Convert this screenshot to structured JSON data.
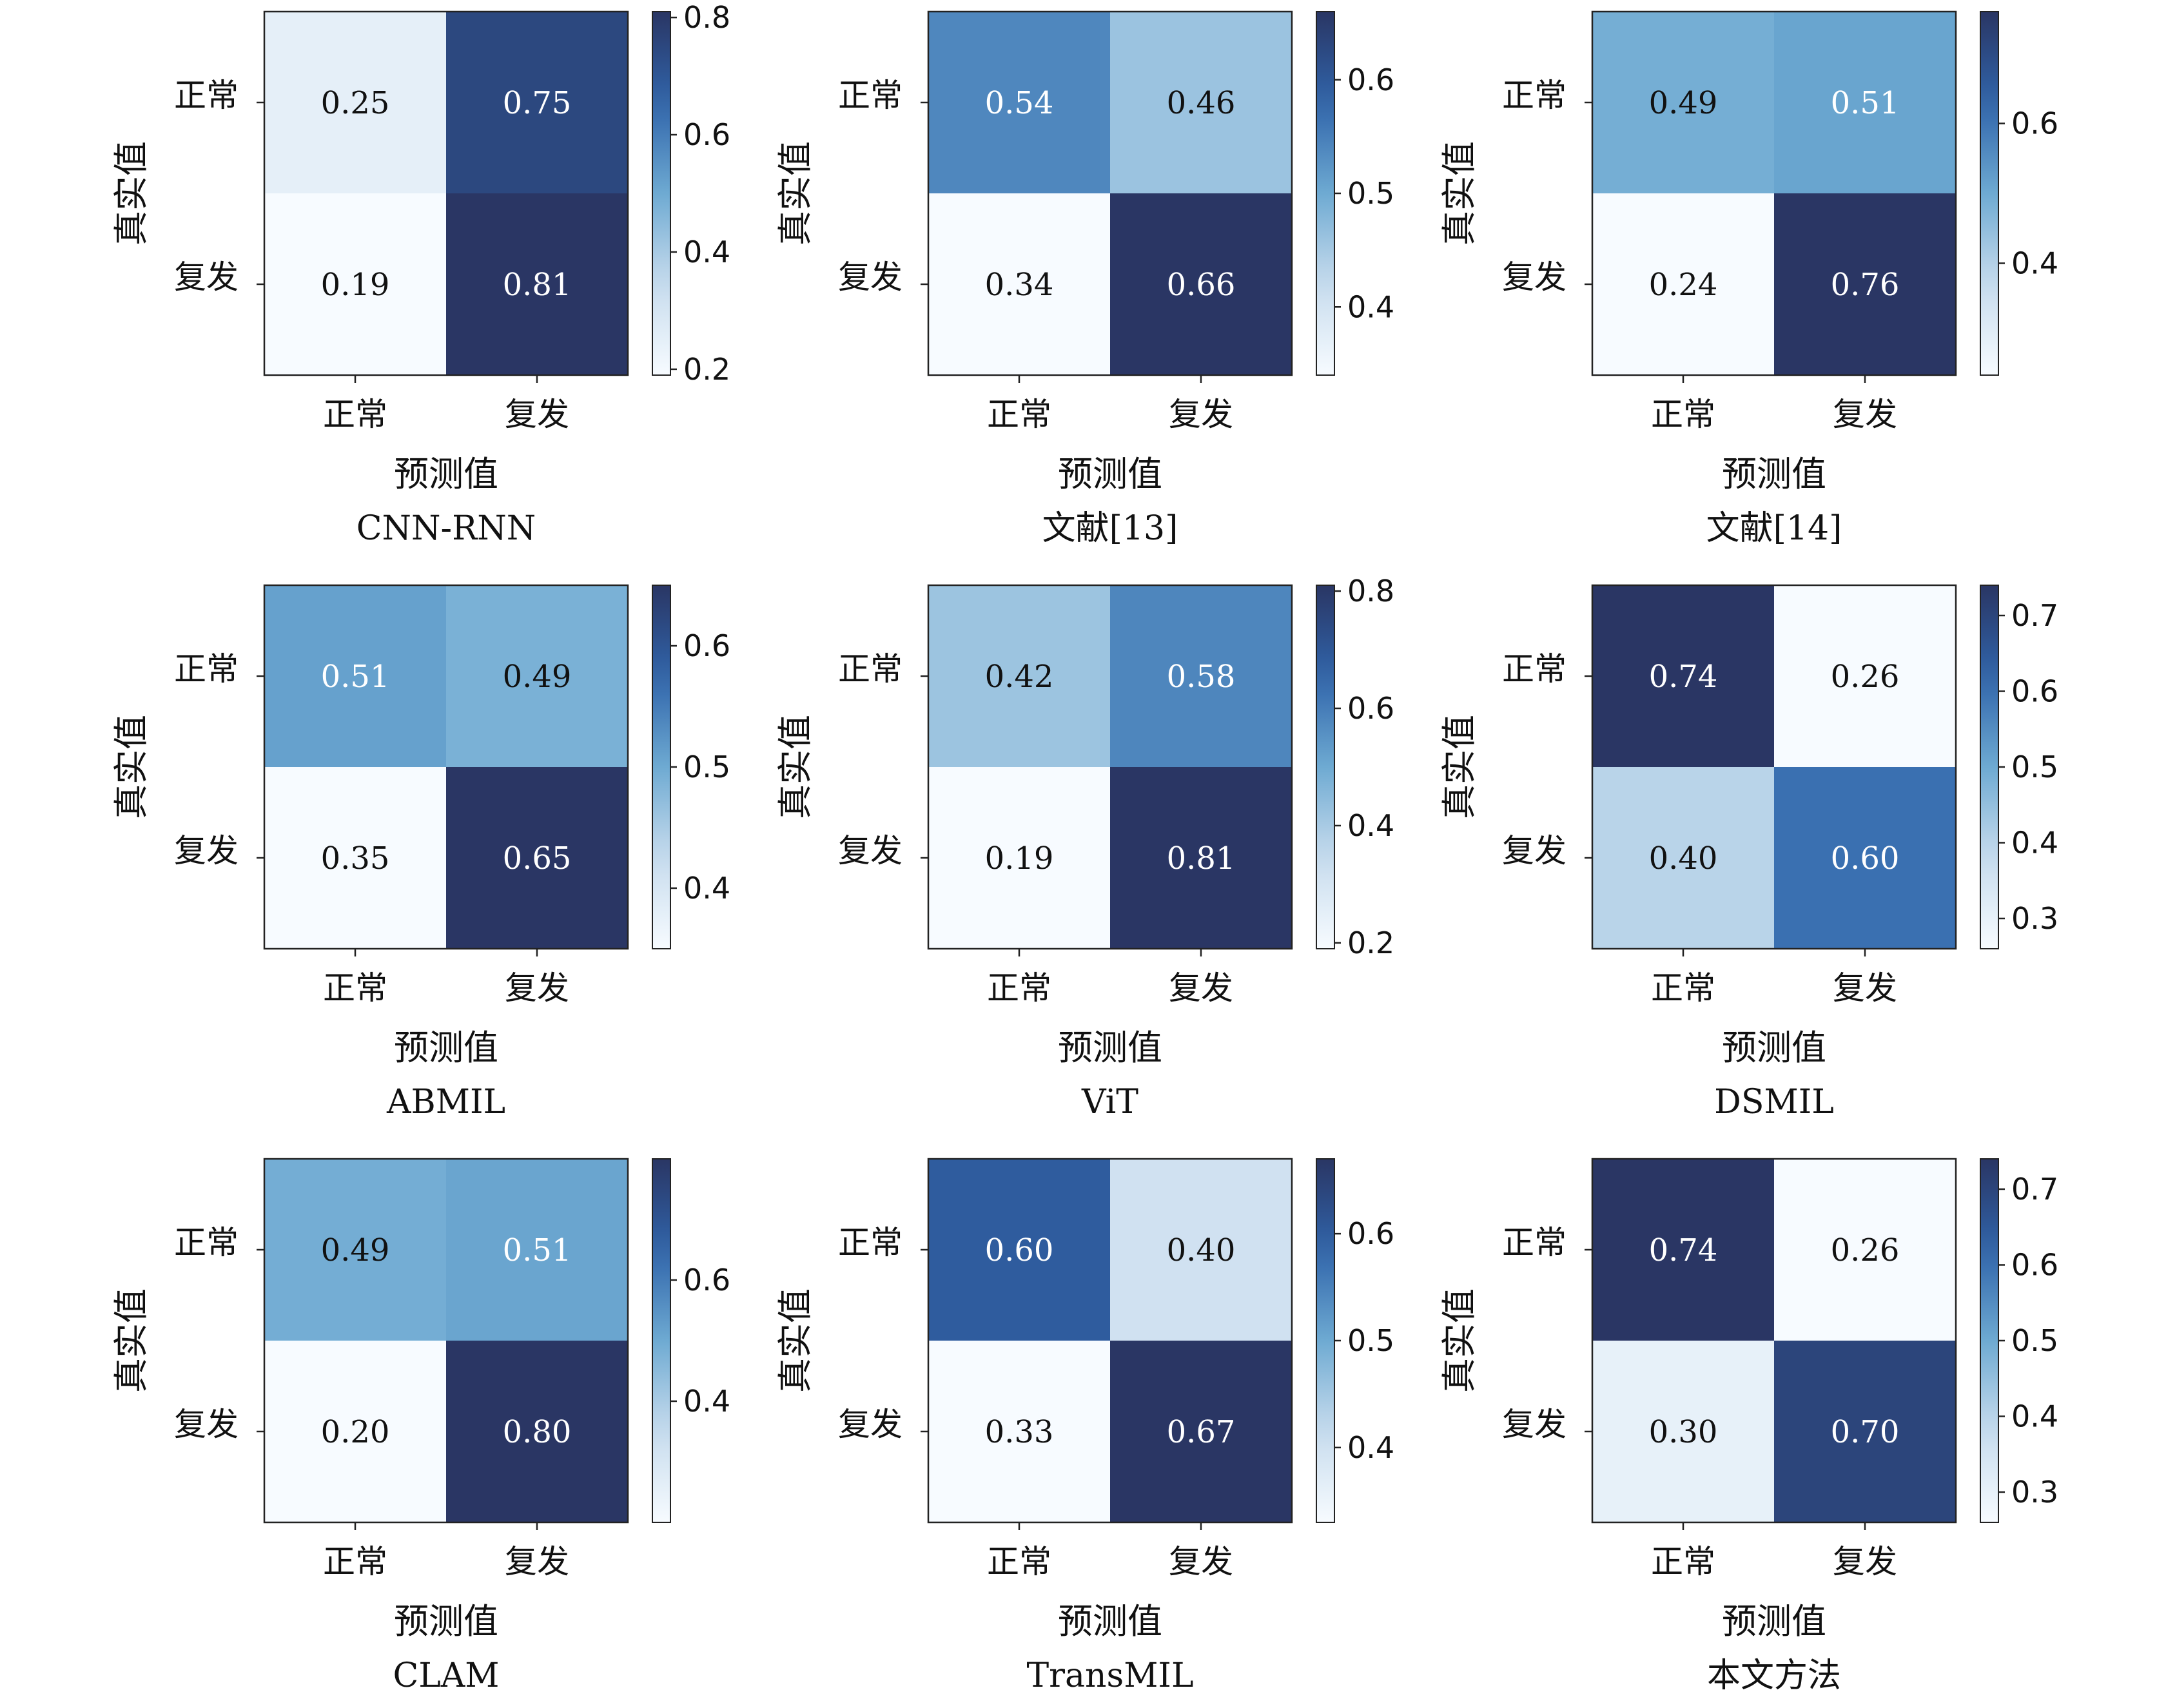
{
  "chart_data": [
    {
      "type": "heatmap",
      "title": "CNN-RNN",
      "xlabel": "预测值",
      "ylabel": "真实值",
      "x_categories": [
        "正常",
        "复发"
      ],
      "y_categories": [
        "正常",
        "复发"
      ],
      "values": [
        [
          0.25,
          0.75
        ],
        [
          0.19,
          0.81
        ]
      ],
      "value_labels": [
        [
          "0.25",
          "0.75"
        ],
        [
          "0.19",
          "0.81"
        ]
      ],
      "colorbar_range": [
        0.19,
        0.81
      ],
      "colorbar_ticks": [
        "0.2",
        "0.4",
        "0.6",
        "0.8"
      ],
      "colorbar_tick_values": [
        0.2,
        0.4,
        0.6,
        0.8
      ],
      "colormap": "Blues"
    },
    {
      "type": "heatmap",
      "title": "文献[13]",
      "xlabel": "预测值",
      "ylabel": "真实值",
      "x_categories": [
        "正常",
        "复发"
      ],
      "y_categories": [
        "正常",
        "复发"
      ],
      "values": [
        [
          0.54,
          0.46
        ],
        [
          0.34,
          0.66
        ]
      ],
      "value_labels": [
        [
          "0.54",
          "0.46"
        ],
        [
          "0.34",
          "0.66"
        ]
      ],
      "colorbar_range": [
        0.34,
        0.66
      ],
      "colorbar_ticks": [
        "0.4",
        "0.5",
        "0.6"
      ],
      "colorbar_tick_values": [
        0.4,
        0.5,
        0.6
      ],
      "colormap": "Blues"
    },
    {
      "type": "heatmap",
      "title": "文献[14]",
      "xlabel": "预测值",
      "ylabel": "真实值",
      "x_categories": [
        "正常",
        "复发"
      ],
      "y_categories": [
        "正常",
        "复发"
      ],
      "values": [
        [
          0.49,
          0.51
        ],
        [
          0.24,
          0.76
        ]
      ],
      "value_labels": [
        [
          "0.49",
          "0.51"
        ],
        [
          "0.24",
          "0.76"
        ]
      ],
      "colorbar_range": [
        0.24,
        0.76
      ],
      "colorbar_ticks": [
        "0.4",
        "0.6"
      ],
      "colorbar_tick_values": [
        0.4,
        0.6
      ],
      "colormap": "Blues"
    },
    {
      "type": "heatmap",
      "title": "ABMIL",
      "xlabel": "预测值",
      "ylabel": "真实值",
      "x_categories": [
        "正常",
        "复发"
      ],
      "y_categories": [
        "正常",
        "复发"
      ],
      "values": [
        [
          0.51,
          0.49
        ],
        [
          0.35,
          0.65
        ]
      ],
      "value_labels": [
        [
          "0.51",
          "0.49"
        ],
        [
          "0.35",
          "0.65"
        ]
      ],
      "colorbar_range": [
        0.35,
        0.65
      ],
      "colorbar_ticks": [
        "0.4",
        "0.5",
        "0.6"
      ],
      "colorbar_tick_values": [
        0.4,
        0.5,
        0.6
      ],
      "colormap": "Blues"
    },
    {
      "type": "heatmap",
      "title": "ViT",
      "xlabel": "预测值",
      "ylabel": "真实值",
      "x_categories": [
        "正常",
        "复发"
      ],
      "y_categories": [
        "正常",
        "复发"
      ],
      "values": [
        [
          0.42,
          0.58
        ],
        [
          0.19,
          0.81
        ]
      ],
      "value_labels": [
        [
          "0.42",
          "0.58"
        ],
        [
          "0.19",
          "0.81"
        ]
      ],
      "colorbar_range": [
        0.19,
        0.81
      ],
      "colorbar_ticks": [
        "0.2",
        "0.4",
        "0.6",
        "0.8"
      ],
      "colorbar_tick_values": [
        0.2,
        0.4,
        0.6,
        0.8
      ],
      "colormap": "Blues"
    },
    {
      "type": "heatmap",
      "title": "DSMIL",
      "xlabel": "预测值",
      "ylabel": "真实值",
      "x_categories": [
        "正常",
        "复发"
      ],
      "y_categories": [
        "正常",
        "复发"
      ],
      "values": [
        [
          0.74,
          0.26
        ],
        [
          0.4,
          0.6
        ]
      ],
      "value_labels": [
        [
          "0.74",
          "0.26"
        ],
        [
          "0.40",
          "0.60"
        ]
      ],
      "colorbar_range": [
        0.26,
        0.74
      ],
      "colorbar_ticks": [
        "0.3",
        "0.4",
        "0.5",
        "0.6",
        "0.7"
      ],
      "colorbar_tick_values": [
        0.3,
        0.4,
        0.5,
        0.6,
        0.7
      ],
      "colormap": "Blues"
    },
    {
      "type": "heatmap",
      "title": "CLAM",
      "xlabel": "预测值",
      "ylabel": "真实值",
      "x_categories": [
        "正常",
        "复发"
      ],
      "y_categories": [
        "正常",
        "复发"
      ],
      "values": [
        [
          0.49,
          0.51
        ],
        [
          0.2,
          0.8
        ]
      ],
      "value_labels": [
        [
          "0.49",
          "0.51"
        ],
        [
          "0.20",
          "0.80"
        ]
      ],
      "colorbar_range": [
        0.2,
        0.8
      ],
      "colorbar_ticks": [
        "0.4",
        "0.6"
      ],
      "colorbar_tick_values": [
        0.4,
        0.6
      ],
      "colormap": "Blues"
    },
    {
      "type": "heatmap",
      "title": "TransMIL",
      "xlabel": "预测值",
      "ylabel": "真实值",
      "x_categories": [
        "正常",
        "复发"
      ],
      "y_categories": [
        "正常",
        "复发"
      ],
      "values": [
        [
          0.6,
          0.4
        ],
        [
          0.33,
          0.67
        ]
      ],
      "value_labels": [
        [
          "0.60",
          "0.40"
        ],
        [
          "0.33",
          "0.67"
        ]
      ],
      "colorbar_range": [
        0.33,
        0.67
      ],
      "colorbar_ticks": [
        "0.4",
        "0.5",
        "0.6"
      ],
      "colorbar_tick_values": [
        0.4,
        0.5,
        0.6
      ],
      "colormap": "Blues"
    },
    {
      "type": "heatmap",
      "title": "本文方法",
      "xlabel": "预测值",
      "ylabel": "真实值",
      "x_categories": [
        "正常",
        "复发"
      ],
      "y_categories": [
        "正常",
        "复发"
      ],
      "values": [
        [
          0.74,
          0.26
        ],
        [
          0.3,
          0.7
        ]
      ],
      "value_labels": [
        [
          "0.74",
          "0.26"
        ],
        [
          "0.30",
          "0.70"
        ]
      ],
      "colorbar_range": [
        0.26,
        0.74
      ],
      "colorbar_ticks": [
        "0.3",
        "0.4",
        "0.5",
        "0.6",
        "0.7"
      ],
      "colorbar_tick_values": [
        0.3,
        0.4,
        0.5,
        0.6,
        0.7
      ],
      "colormap": "Blues"
    }
  ]
}
